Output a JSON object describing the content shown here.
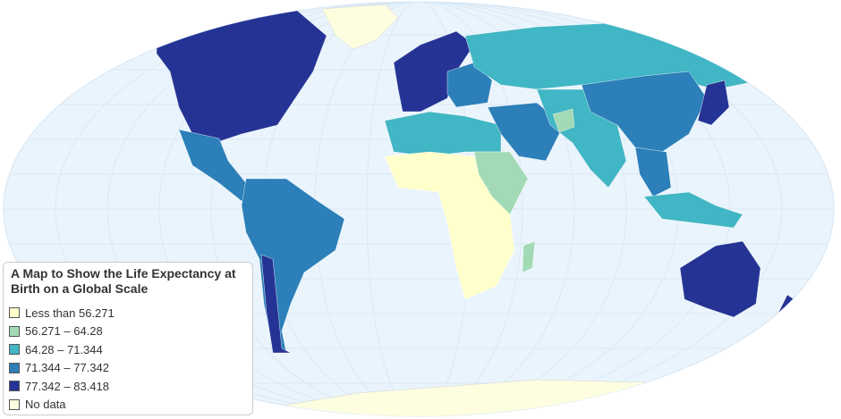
{
  "title": "A Map to Show the Life Expectancy at Birth on a Global Scale",
  "legend": [
    {
      "label": "Less than 56.271",
      "color": "#ffffcc"
    },
    {
      "label": "56.271 – 64.28",
      "color": "#a1dab4"
    },
    {
      "label": "64.28 – 71.344",
      "color": "#41b6c4"
    },
    {
      "label": "71.344 – 77.342",
      "color": "#2c7fb8"
    },
    {
      "label": "77.342 – 83.418",
      "color": "#253494"
    },
    {
      "label": "No data",
      "color": "#fdfde0"
    }
  ],
  "colors": {
    "ocean": "#eaf4fc",
    "graticule": "#d6e6f3"
  }
}
